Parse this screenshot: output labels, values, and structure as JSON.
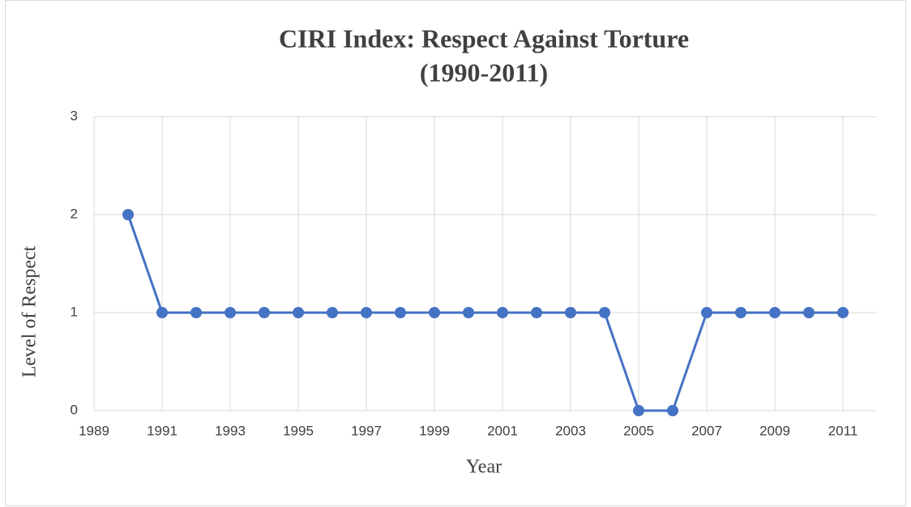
{
  "chart_data": {
    "type": "line",
    "title": [
      "CIRI Index: Respect Against Torture",
      "(1990-2011)"
    ],
    "x_label": "Year",
    "y_label": "Level of Respect",
    "x": [
      1990,
      1991,
      1992,
      1993,
      1994,
      1995,
      1996,
      1997,
      1998,
      1999,
      2000,
      2001,
      2002,
      2003,
      2004,
      2005,
      2006,
      2007,
      2008,
      2009,
      2010,
      2011
    ],
    "series": [
      {
        "name": "Level of Respect",
        "color": "#4472c4",
        "values": [
          2,
          1,
          1,
          1,
          1,
          1,
          1,
          1,
          1,
          1,
          1,
          1,
          1,
          1,
          1,
          0,
          0,
          1,
          1,
          1,
          1,
          1
        ]
      }
    ],
    "xlim": [
      1989,
      2012
    ],
    "xticks": [
      1989,
      1991,
      1993,
      1995,
      1997,
      1999,
      2001,
      2003,
      2005,
      2007,
      2009,
      2011
    ],
    "ylim": [
      0,
      3
    ],
    "yticks": [
      0,
      1,
      2,
      3
    ],
    "grid": true
  }
}
